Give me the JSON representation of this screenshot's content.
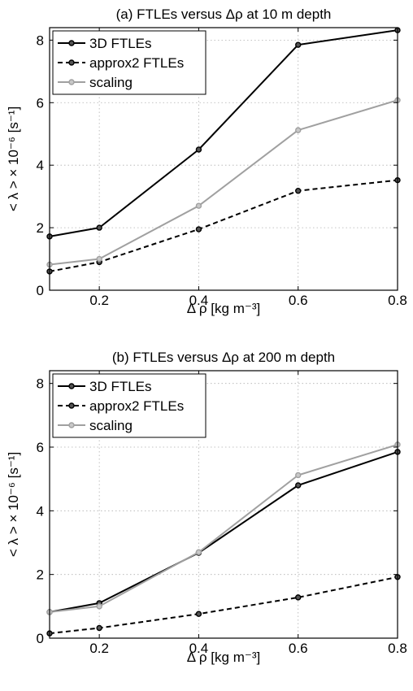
{
  "chart_data": [
    {
      "type": "line",
      "title": "(a) FTLEs versus Δρ at 10 m depth",
      "xlabel": "Δ ρ [kg m⁻³]",
      "ylabel": "< λ > × 10⁻⁶ [s⁻¹]",
      "xlim": [
        0.1,
        0.8
      ],
      "ylim": [
        0,
        8.4
      ],
      "xticks": [
        0.2,
        0.4,
        0.6,
        0.8
      ],
      "xtick_labels": [
        "0.2",
        "0.4",
        "0.6",
        "0.8"
      ],
      "yticks": [
        0,
        2,
        4,
        6,
        8
      ],
      "ytick_labels": [
        "0",
        "2",
        "4",
        "6",
        "8"
      ],
      "grid": true,
      "legend_position": "top-left",
      "x": [
        0.1,
        0.2,
        0.4,
        0.6,
        0.8
      ],
      "series": [
        {
          "name": "3D FTLEs",
          "values": [
            1.72,
            2.0,
            4.5,
            7.85,
            8.32
          ],
          "color": "#000000",
          "style": "solid"
        },
        {
          "name": "approx2 FTLEs",
          "values": [
            0.6,
            0.9,
            1.95,
            3.18,
            3.52
          ],
          "color": "#000000",
          "style": "dashed"
        },
        {
          "name": "scaling",
          "values": [
            0.82,
            1.0,
            2.7,
            5.12,
            6.08
          ],
          "color": "#a0a0a0",
          "style": "solid"
        }
      ]
    },
    {
      "type": "line",
      "title": "(b) FTLEs versus Δρ at 200 m depth",
      "xlabel": "Δ ρ [kg m⁻³]",
      "ylabel": "< λ > × 10⁻⁶ [s⁻¹]",
      "xlim": [
        0.1,
        0.8
      ],
      "ylim": [
        0,
        8.4
      ],
      "xticks": [
        0.2,
        0.4,
        0.6,
        0.8
      ],
      "xtick_labels": [
        "0.2",
        "0.4",
        "0.6",
        "0.8"
      ],
      "yticks": [
        0,
        2,
        4,
        6,
        8
      ],
      "ytick_labels": [
        "0",
        "2",
        "4",
        "6",
        "8"
      ],
      "grid": true,
      "legend_position": "top-left",
      "x": [
        0.1,
        0.2,
        0.4,
        0.6,
        0.8
      ],
      "series": [
        {
          "name": "3D FTLEs",
          "values": [
            0.82,
            1.1,
            2.68,
            4.8,
            5.85
          ],
          "color": "#000000",
          "style": "solid"
        },
        {
          "name": "approx2 FTLEs",
          "values": [
            0.15,
            0.32,
            0.76,
            1.28,
            1.92
          ],
          "color": "#000000",
          "style": "dashed"
        },
        {
          "name": "scaling",
          "values": [
            0.82,
            1.0,
            2.7,
            5.12,
            6.08
          ],
          "color": "#a0a0a0",
          "style": "solid"
        }
      ]
    }
  ]
}
